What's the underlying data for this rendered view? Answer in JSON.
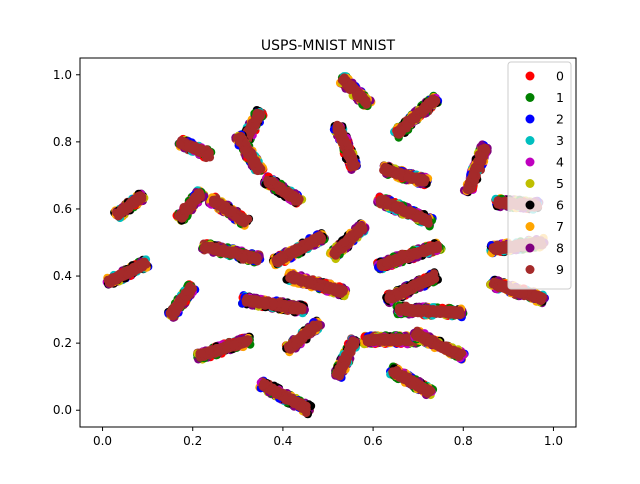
{
  "chart_data": {
    "type": "scatter",
    "title": "USPS-MNIST MNIST",
    "xlabel": "",
    "ylabel": "",
    "xlim": [
      -0.05,
      1.05
    ],
    "ylim": [
      -0.05,
      1.05
    ],
    "xticks": [
      0.0,
      0.2,
      0.4,
      0.6,
      0.8,
      1.0
    ],
    "yticks": [
      0.0,
      0.2,
      0.4,
      0.6,
      0.8,
      1.0
    ],
    "xtick_labels": [
      "0.0",
      "0.2",
      "0.4",
      "0.6",
      "0.8",
      "1.0"
    ],
    "ytick_labels": [
      "0.0",
      "0.2",
      "0.4",
      "0.6",
      "0.8",
      "1.0"
    ],
    "grid": false,
    "legend_position": "upper right",
    "series": [
      {
        "name": "0",
        "color": "#ff0000"
      },
      {
        "name": "1",
        "color": "#008000"
      },
      {
        "name": "2",
        "color": "#0000ff"
      },
      {
        "name": "3",
        "color": "#00bfbf"
      },
      {
        "name": "4",
        "color": "#bf00bf"
      },
      {
        "name": "5",
        "color": "#bfbf00"
      },
      {
        "name": "6",
        "color": "#000000"
      },
      {
        "name": "7",
        "color": "#ffa500"
      },
      {
        "name": "8",
        "color": "#800080"
      },
      {
        "name": "9",
        "color": "#a52a2a"
      }
    ],
    "clusters": [
      {
        "from": [
          0.53,
          0.99
        ],
        "to": [
          0.59,
          0.91
        ]
      },
      {
        "from": [
          0.52,
          0.85
        ],
        "to": [
          0.56,
          0.72
        ]
      },
      {
        "from": [
          0.65,
          0.82
        ],
        "to": [
          0.74,
          0.93
        ]
      },
      {
        "from": [
          0.85,
          0.79
        ],
        "to": [
          0.81,
          0.65
        ]
      },
      {
        "from": [
          0.31,
          0.79
        ],
        "to": [
          0.35,
          0.89
        ]
      },
      {
        "from": [
          0.17,
          0.8
        ],
        "to": [
          0.24,
          0.76
        ]
      },
      {
        "from": [
          0.3,
          0.82
        ],
        "to": [
          0.35,
          0.71
        ]
      },
      {
        "from": [
          0.03,
          0.58
        ],
        "to": [
          0.09,
          0.64
        ]
      },
      {
        "from": [
          0.17,
          0.57
        ],
        "to": [
          0.22,
          0.65
        ]
      },
      {
        "from": [
          0.24,
          0.63
        ],
        "to": [
          0.32,
          0.56
        ]
      },
      {
        "from": [
          0.36,
          0.69
        ],
        "to": [
          0.44,
          0.62
        ]
      },
      {
        "from": [
          0.61,
          0.63
        ],
        "to": [
          0.73,
          0.56
        ]
      },
      {
        "from": [
          0.62,
          0.72
        ],
        "to": [
          0.72,
          0.68
        ]
      },
      {
        "from": [
          0.87,
          0.62
        ],
        "to": [
          0.97,
          0.61
        ]
      },
      {
        "from": [
          0.22,
          0.49
        ],
        "to": [
          0.35,
          0.45
        ]
      },
      {
        "from": [
          0.38,
          0.44
        ],
        "to": [
          0.49,
          0.52
        ]
      },
      {
        "from": [
          0.51,
          0.46
        ],
        "to": [
          0.58,
          0.55
        ]
      },
      {
        "from": [
          0.61,
          0.43
        ],
        "to": [
          0.75,
          0.49
        ]
      },
      {
        "from": [
          0.86,
          0.48
        ],
        "to": [
          0.98,
          0.5
        ]
      },
      {
        "from": [
          0.01,
          0.38
        ],
        "to": [
          0.1,
          0.44
        ]
      },
      {
        "from": [
          0.15,
          0.28
        ],
        "to": [
          0.2,
          0.37
        ]
      },
      {
        "from": [
          0.41,
          0.4
        ],
        "to": [
          0.54,
          0.35
        ]
      },
      {
        "from": [
          0.63,
          0.33
        ],
        "to": [
          0.74,
          0.4
        ]
      },
      {
        "from": [
          0.65,
          0.3
        ],
        "to": [
          0.8,
          0.29
        ]
      },
      {
        "from": [
          0.86,
          0.38
        ],
        "to": [
          0.98,
          0.33
        ]
      },
      {
        "from": [
          0.31,
          0.33
        ],
        "to": [
          0.45,
          0.3
        ]
      },
      {
        "from": [
          0.21,
          0.16
        ],
        "to": [
          0.33,
          0.21
        ]
      },
      {
        "from": [
          0.41,
          0.18
        ],
        "to": [
          0.48,
          0.26
        ]
      },
      {
        "from": [
          0.52,
          0.1
        ],
        "to": [
          0.56,
          0.21
        ]
      },
      {
        "from": [
          0.58,
          0.21
        ],
        "to": [
          0.7,
          0.21
        ]
      },
      {
        "from": [
          0.69,
          0.23
        ],
        "to": [
          0.8,
          0.16
        ]
      },
      {
        "from": [
          0.35,
          0.08
        ],
        "to": [
          0.46,
          0.0
        ]
      },
      {
        "from": [
          0.64,
          0.12
        ],
        "to": [
          0.73,
          0.05
        ]
      }
    ]
  }
}
